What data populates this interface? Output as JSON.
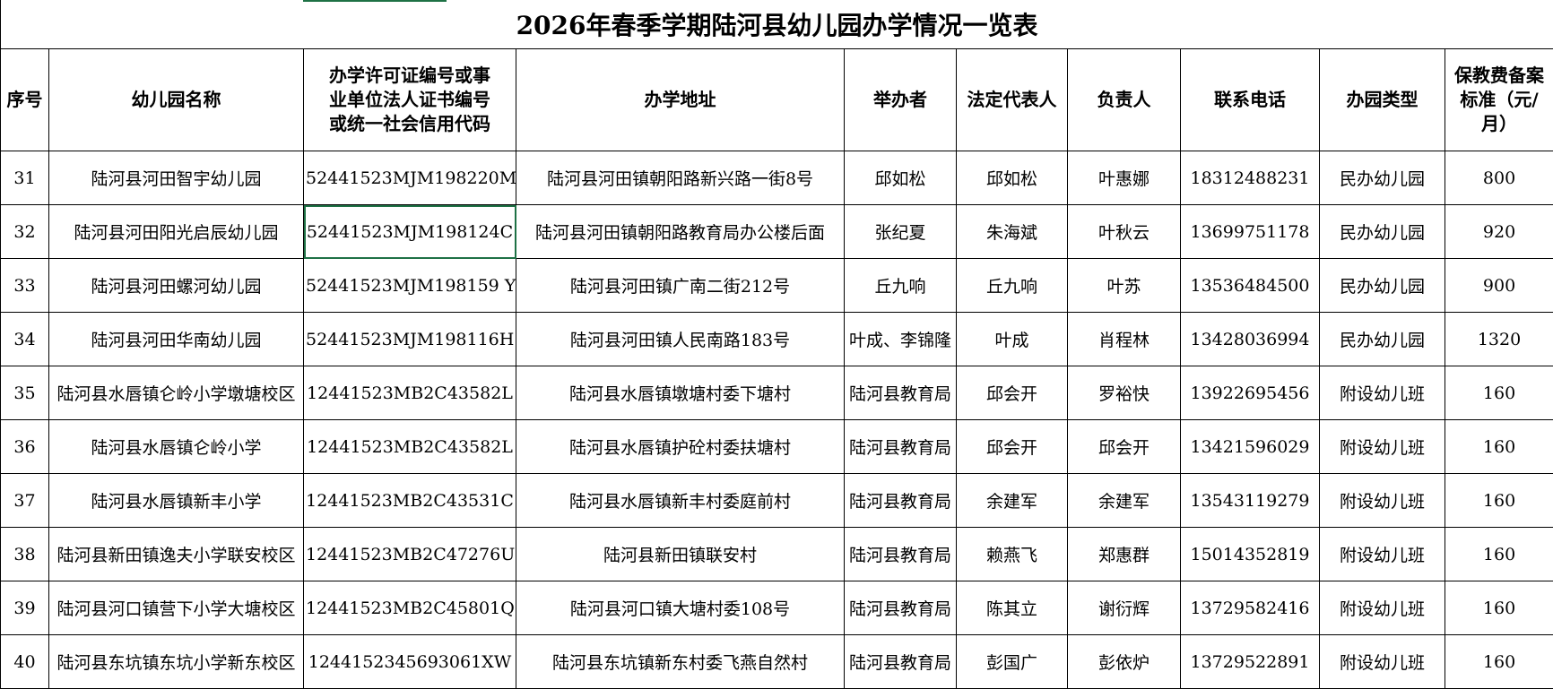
{
  "title": "2026年春季学期陆河县幼儿园办学情况一览表",
  "table": {
    "header": [
      "序号",
      "幼儿园名称",
      "办学许可证编号或事业单位法人证书编号或统一社会信用代码",
      "办学地址",
      "举办者",
      "法定代表人",
      "负责人",
      "联系电话",
      "办园类型",
      "保教费备案标准（元/月）"
    ],
    "rows": [
      [
        "31",
        "陆河县河田智宇幼儿园",
        "52441523MJM198220M",
        "陆河县河田镇朝阳路新兴路一街8号",
        "邱如松",
        "邱如松",
        "叶惠娜",
        "18312488231",
        "民办幼儿园",
        "800"
      ],
      [
        "32",
        "陆河县河田阳光启辰幼儿园",
        "52441523MJM198124C",
        "陆河县河田镇朝阳路教育局办公楼后面",
        "张纪夏",
        "朱海斌",
        "叶秋云",
        "13699751178",
        "民办幼儿园",
        "920"
      ],
      [
        "33",
        "陆河县河田螺河幼儿园",
        "52441523MJM198159 Y",
        "陆河县河田镇广南二街212号",
        "丘九响",
        "丘九响",
        "叶苏",
        "13536484500",
        "民办幼儿园",
        "900"
      ],
      [
        "34",
        "陆河县河田华南幼儿园",
        "52441523MJM198116H",
        "陆河县河田镇人民南路183号",
        "叶成、李锦隆",
        "叶成",
        "肖程林",
        "13428036994",
        "民办幼儿园",
        "1320"
      ],
      [
        "35",
        "陆河县水唇镇仑岭小学墩塘校区",
        "12441523MB2C43582L",
        "陆河县水唇镇墩塘村委下塘村",
        "陆河县教育局",
        "邱会开",
        "罗裕快",
        "13922695456",
        "附设幼儿班",
        "160"
      ],
      [
        "36",
        "陆河县水唇镇仑岭小学",
        "12441523MB2C43582L",
        "陆河县水唇镇护砼村委扶塘村",
        "陆河县教育局",
        "邱会开",
        "邱会开",
        "13421596029",
        "附设幼儿班",
        "160"
      ],
      [
        "37",
        "陆河县水唇镇新丰小学",
        "12441523MB2C43531C",
        "陆河县水唇镇新丰村委庭前村",
        "陆河县教育局",
        "余建军",
        "余建军",
        "13543119279",
        "附设幼儿班",
        "160"
      ],
      [
        "38",
        "陆河县新田镇逸夫小学联安校区",
        "12441523MB2C47276U",
        "陆河县新田镇联安村",
        "陆河县教育局",
        "赖燕飞",
        "郑惠群",
        "15014352819",
        "附设幼儿班",
        "160"
      ],
      [
        "39",
        "陆河县河口镇营下小学大塘校区",
        "12441523MB2C45801Q",
        "陆河县河口镇大塘村委108号",
        "陆河县教育局",
        "陈其立",
        "谢衍辉",
        "13729582416",
        "附设幼儿班",
        "160"
      ],
      [
        "40",
        "陆河县东坑镇东坑小学新东校区",
        "1244152345693061XW",
        "陆河县东坑镇新东村委飞燕自然村",
        "陆河县教育局",
        "彭国广",
        "彭依炉",
        "13729522891",
        "附设幼儿班",
        "160"
      ]
    ]
  }
}
